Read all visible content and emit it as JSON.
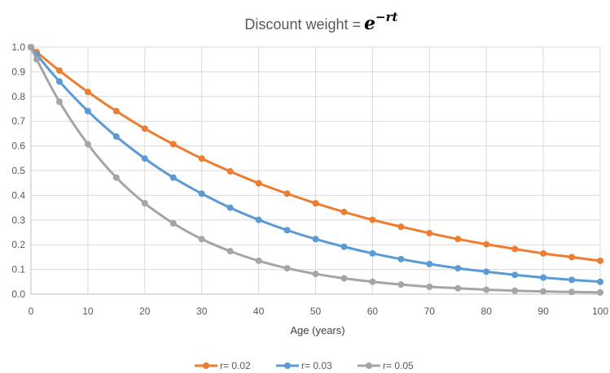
{
  "chart_data": {
    "type": "line",
    "title": "Discount weight = ",
    "title_math_base": "e",
    "title_math_exponent": "−rt",
    "xlabel": "Age (years)",
    "ylabel": "",
    "xlim": [
      0,
      100
    ],
    "ylim": [
      0,
      1.0
    ],
    "x_ticks": [
      "0",
      "10",
      "20",
      "30",
      "40",
      "50",
      "60",
      "70",
      "80",
      "90",
      "100"
    ],
    "y_ticks": [
      "0.0",
      "0.1",
      "0.2",
      "0.3",
      "0.4",
      "0.5",
      "0.6",
      "0.7",
      "0.8",
      "0.9",
      "1.0"
    ],
    "grid": true,
    "legend_position": "bottom",
    "marker_x": [
      0,
      1,
      5,
      10,
      15,
      20,
      25,
      30,
      35,
      40,
      45,
      50,
      55,
      60,
      65,
      70,
      75,
      80,
      85,
      90,
      95,
      100
    ],
    "series": [
      {
        "name": "r= 0.02",
        "color": "#ED7D31",
        "values": [
          1.0,
          0.98,
          0.905,
          0.819,
          0.741,
          0.67,
          0.607,
          0.549,
          0.497,
          0.449,
          0.407,
          0.368,
          0.333,
          0.301,
          0.273,
          0.247,
          0.223,
          0.202,
          0.183,
          0.165,
          0.15,
          0.135
        ]
      },
      {
        "name": "r= 0.03",
        "color": "#5B9BD5",
        "values": [
          1.0,
          0.97,
          0.861,
          0.741,
          0.638,
          0.549,
          0.472,
          0.407,
          0.35,
          0.301,
          0.259,
          0.223,
          0.192,
          0.165,
          0.142,
          0.122,
          0.105,
          0.091,
          0.078,
          0.067,
          0.058,
          0.05
        ]
      },
      {
        "name": "r= 0.05",
        "color": "#A5A5A5",
        "values": [
          1.0,
          0.951,
          0.779,
          0.607,
          0.472,
          0.368,
          0.287,
          0.223,
          0.174,
          0.135,
          0.105,
          0.082,
          0.064,
          0.05,
          0.039,
          0.03,
          0.024,
          0.018,
          0.014,
          0.011,
          0.009,
          0.007
        ]
      }
    ]
  }
}
